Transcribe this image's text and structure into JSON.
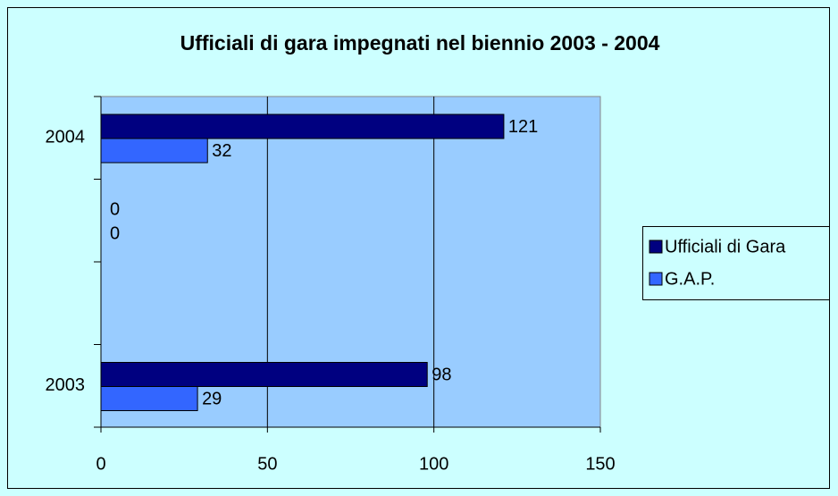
{
  "chart_data": {
    "type": "barh",
    "title": "Ufficiali di gara impegnati nel biennio 2003 - 2004",
    "categories": [
      "2003",
      null,
      null,
      "2004"
    ],
    "series": [
      {
        "name": "Ufficiali di Gara",
        "color": "#000080",
        "values": [
          98,
          null,
          0,
          121
        ]
      },
      {
        "name": "G.A.P.",
        "color": "#3366ff",
        "values": [
          29,
          null,
          0,
          32
        ]
      }
    ],
    "xlim": [
      0,
      150
    ],
    "xticks": [
      0,
      50,
      100,
      150
    ],
    "grid": true,
    "legend": "right"
  }
}
